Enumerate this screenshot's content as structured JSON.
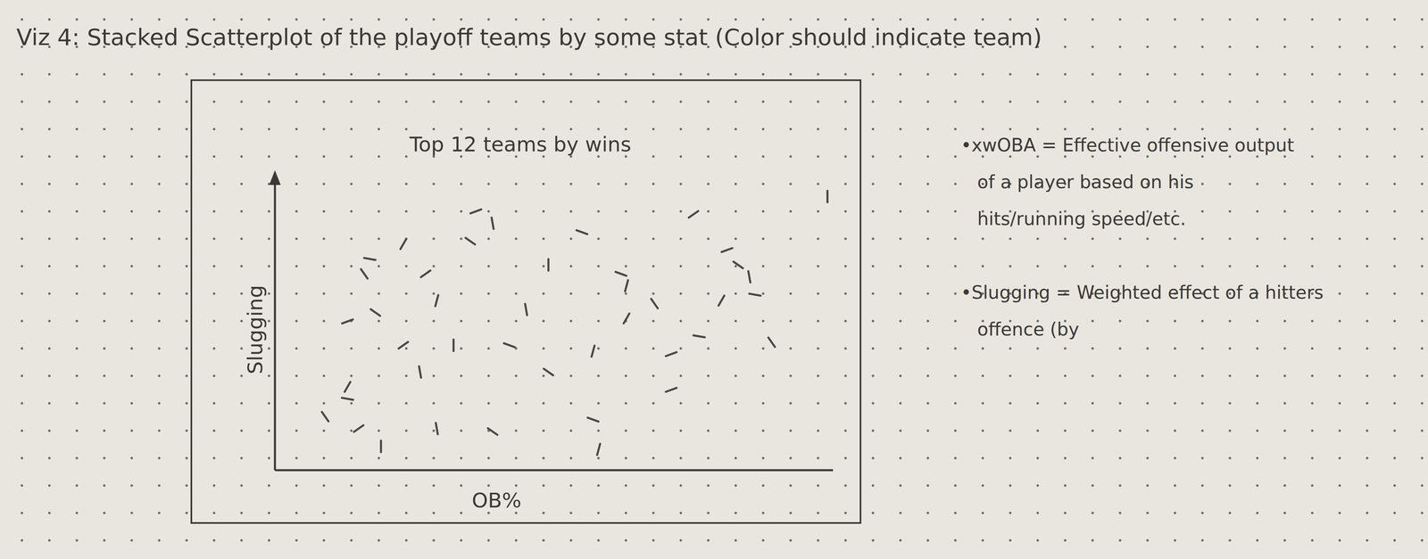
{
  "heading": "Viz 4: Stacked Scatterplot of the playoff teams by some stat (Color should indicate team)",
  "notes": [
    [
      "•xwOBA = Effective offensive output",
      "of a player based on his",
      "hits/running speed/etc."
    ],
    [
      "•Slugging = Weighted effect of a hitters",
      "offence (by"
    ]
  ],
  "chart_data": {
    "type": "scatter",
    "title": "Top 12 teams by wins",
    "xlabel": "OB%",
    "ylabel": "Slugging",
    "x": [
      36,
      35,
      39,
      23,
      17,
      16,
      27,
      49,
      62,
      63,
      81,
      83,
      85,
      80,
      86,
      68,
      75,
      99,
      55,
      29,
      13,
      18,
      45,
      63,
      76,
      89,
      23,
      32,
      42,
      57,
      71,
      49,
      26,
      13,
      13,
      9,
      15,
      19,
      57,
      58,
      71,
      39,
      29
    ],
    "values": [
      87,
      77,
      83,
      76,
      71,
      66,
      66,
      69,
      66,
      62,
      74,
      69,
      65,
      57,
      59,
      56,
      86,
      92,
      80,
      57,
      50,
      53,
      54,
      51,
      45,
      43,
      42,
      42,
      42,
      40,
      39,
      33,
      33,
      28,
      24,
      18,
      14,
      8,
      17,
      7,
      27,
      13,
      14
    ],
    "color": "#4a4845",
    "marker": "dash",
    "xlim": [
      0,
      100
    ],
    "ylim": [
      0,
      100
    ],
    "grid": false,
    "tick_labels": false
  }
}
